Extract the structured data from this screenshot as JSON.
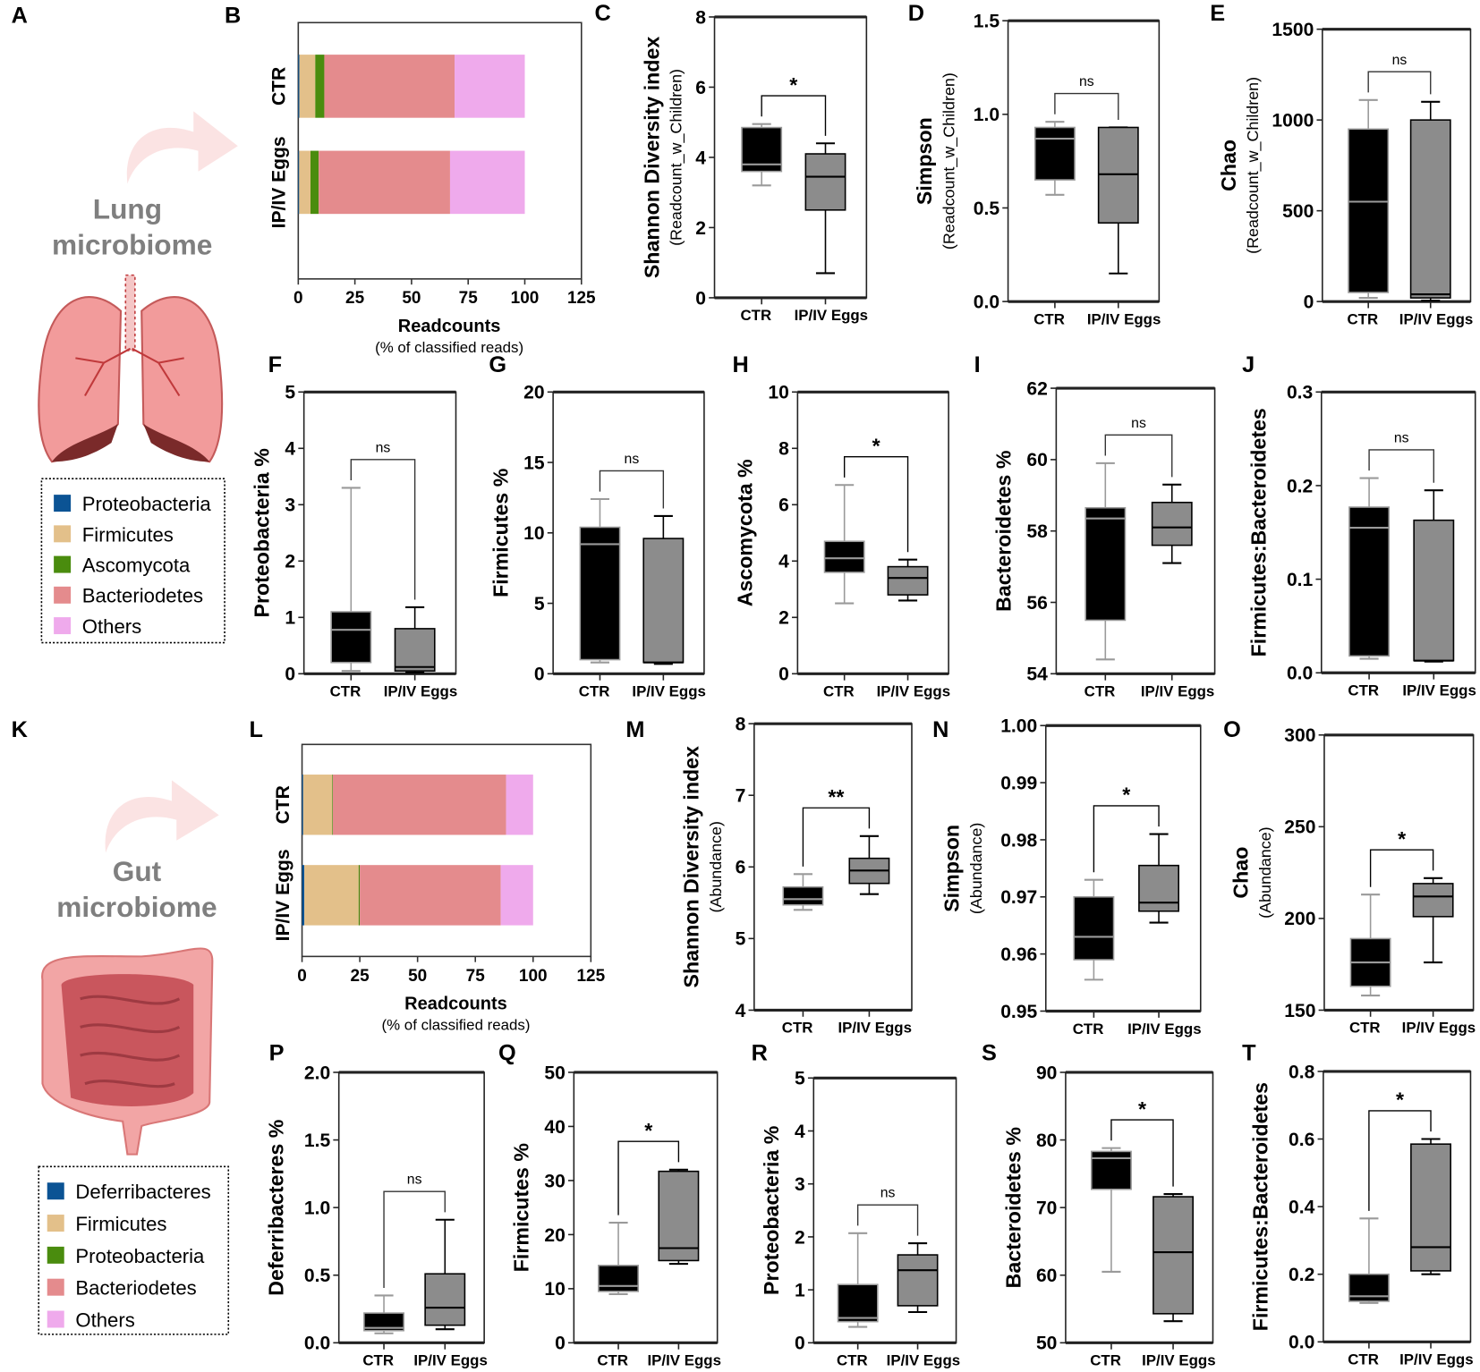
{
  "colors": {
    "ctr_box": "#000000",
    "egg_box": "#8c8c8c",
    "Proteobacteria": "#0b5394",
    "Deferribacteres": "#0b5394",
    "Firmicutes": "#e3c08a",
    "Ascomycota": "#4a8c0e",
    "Proteobacteria_gut": "#4a8c0e",
    "Bacteriodetes": "#e48b8d",
    "Others": "#efaaec"
  },
  "illustrations": {
    "lung": {
      "letter": "A",
      "title_line1": "Lung",
      "title_line2": "microbiome",
      "legend": [
        "Proteobacteria",
        "Firmicutes",
        "Ascomycota",
        "Bacteriodetes",
        "Others"
      ]
    },
    "gut": {
      "letter": "K",
      "title_line1": "Gut",
      "title_line2": "microbiome",
      "legend": [
        "Deferribacteres",
        "Firmicutes",
        "Proteobacteria",
        "Bacteriodetes",
        "Others"
      ]
    }
  },
  "chart_data": [
    {
      "id": "B",
      "type": "bar",
      "orientation": "horizontal",
      "stacked": true,
      "categories": [
        "CTR",
        "IP/IV Eggs"
      ],
      "series": [
        {
          "name": "Proteobacteria",
          "color_key": "Proteobacteria",
          "values": [
            0.5,
            0.4
          ]
        },
        {
          "name": "Firmicutes",
          "color_key": "Firmicutes",
          "values": [
            7,
            5
          ]
        },
        {
          "name": "Ascomycota",
          "color_key": "Ascomycota",
          "values": [
            4,
            3.6
          ]
        },
        {
          "name": "Bacteriodetes",
          "color_key": "Bacteriodetes",
          "values": [
            57.5,
            58
          ]
        },
        {
          "name": "Others",
          "color_key": "Others",
          "values": [
            31,
            33
          ]
        }
      ],
      "xlabel": "Readcounts",
      "xlabel_sub": "(% of classified reads)",
      "xlim": [
        0,
        125
      ],
      "xticks": [
        "0",
        "25",
        "50",
        "75",
        "100",
        "125"
      ]
    },
    {
      "id": "C",
      "type": "box",
      "ylabel": "Shannon Diversity index",
      "ylabel_sub": "(Readcount_w_Children)",
      "ylim": [
        0,
        8
      ],
      "yticks": [
        "0",
        "2",
        "4",
        "6",
        "8"
      ],
      "groups": [
        "CTR",
        "IP/IV Eggs"
      ],
      "boxes": [
        [
          3.2,
          3.6,
          3.8,
          4.85,
          4.95
        ],
        [
          0.7,
          2.5,
          3.45,
          4.1,
          4.4
        ]
      ],
      "significance": "*"
    },
    {
      "id": "D",
      "type": "box",
      "ylabel": "Simpson",
      "ylabel_sub": "(Readcount_w_Children)",
      "ylim": [
        0,
        1.5
      ],
      "yticks": [
        "0.0",
        "0.5",
        "1.0",
        "1.5"
      ],
      "groups": [
        "CTR",
        "IP/IV Eggs"
      ],
      "boxes": [
        [
          0.57,
          0.65,
          0.87,
          0.93,
          0.96
        ],
        [
          0.15,
          0.42,
          0.68,
          0.93,
          0.93
        ]
      ],
      "significance": "ns"
    },
    {
      "id": "E",
      "type": "box",
      "ylabel": "Chao",
      "ylabel_sub": "(Readcount_w_Children)",
      "ylim": [
        0,
        1500
      ],
      "yticks": [
        "0",
        "500",
        "1000",
        "1500"
      ],
      "groups": [
        "CTR",
        "IP/IV Eggs"
      ],
      "boxes": [
        [
          20,
          50,
          550,
          950,
          1110
        ],
        [
          5,
          20,
          40,
          1000,
          1100
        ]
      ],
      "significance": "ns"
    },
    {
      "id": "F",
      "type": "box",
      "ylabel": "Proteobacteria %",
      "ylim": [
        0,
        5
      ],
      "yticks": [
        "0",
        "1",
        "2",
        "3",
        "4",
        "5"
      ],
      "groups": [
        "CTR",
        "IP/IV Eggs"
      ],
      "boxes": [
        [
          0.05,
          0.2,
          0.78,
          1.1,
          3.3
        ],
        [
          0.02,
          0.05,
          0.12,
          0.8,
          1.18
        ]
      ],
      "significance": "ns"
    },
    {
      "id": "G",
      "type": "box",
      "ylabel": "Firmicutes %",
      "ylim": [
        0,
        20
      ],
      "yticks": [
        "0",
        "5",
        "10",
        "15",
        "20"
      ],
      "groups": [
        "CTR",
        "IP/IV Eggs"
      ],
      "boxes": [
        [
          0.8,
          1.0,
          9.2,
          10.4,
          12.4
        ],
        [
          0.7,
          0.8,
          0.8,
          9.6,
          11.2
        ]
      ],
      "significance": "ns"
    },
    {
      "id": "H",
      "type": "box",
      "ylabel": "Ascomycota %",
      "ylim": [
        0,
        10
      ],
      "yticks": [
        "0",
        "2",
        "4",
        "6",
        "8",
        "10"
      ],
      "groups": [
        "CTR",
        "IP/IV Eggs"
      ],
      "boxes": [
        [
          2.5,
          3.6,
          4.1,
          4.7,
          6.7
        ],
        [
          2.6,
          2.8,
          3.4,
          3.8,
          4.05
        ]
      ],
      "significance": "*"
    },
    {
      "id": "I",
      "type": "box",
      "ylabel": "Bacteroidetes %",
      "ylim": [
        54,
        62
      ],
      "yticks": [
        "54",
        "56",
        "58",
        "60",
        "62"
      ],
      "groups": [
        "CTR",
        "IP/IV Eggs"
      ],
      "boxes": [
        [
          54.4,
          55.5,
          58.35,
          58.65,
          59.9
        ],
        [
          57.1,
          57.6,
          58.1,
          58.8,
          59.3
        ]
      ],
      "significance": "ns"
    },
    {
      "id": "J",
      "type": "box",
      "ylabel": "Firmicutes:Bacteroidetes",
      "ylim": [
        0,
        0.3
      ],
      "yticks": [
        "0.0",
        "0.1",
        "0.2",
        "0.3"
      ],
      "groups": [
        "CTR",
        "IP/IV Eggs"
      ],
      "boxes": [
        [
          0.015,
          0.018,
          0.155,
          0.177,
          0.208
        ],
        [
          0.012,
          0.013,
          0.013,
          0.163,
          0.195
        ]
      ],
      "significance": "ns"
    },
    {
      "id": "L",
      "type": "bar",
      "orientation": "horizontal",
      "stacked": true,
      "categories": [
        "CTR",
        "IP/IV Eggs"
      ],
      "series": [
        {
          "name": "Deferribacteres",
          "color_key": "Deferribacteres",
          "values": [
            0.5,
            1
          ]
        },
        {
          "name": "Firmicutes",
          "color_key": "Firmicutes",
          "values": [
            12.5,
            23.5
          ]
        },
        {
          "name": "Proteobacteria",
          "color_key": "Proteobacteria_gut",
          "values": [
            0.3,
            0.5
          ]
        },
        {
          "name": "Bacteriodetes",
          "color_key": "Bacteriodetes",
          "values": [
            75,
            61
          ]
        },
        {
          "name": "Others",
          "color_key": "Others",
          "values": [
            11.7,
            14
          ]
        }
      ],
      "xlabel": "Readcounts",
      "xlabel_sub": "(% of classified reads)",
      "xlim": [
        0,
        125
      ],
      "xticks": [
        "0",
        "25",
        "50",
        "75",
        "100",
        "125"
      ]
    },
    {
      "id": "M",
      "type": "box",
      "ylabel": "Shannon Diversity index",
      "ylabel_sub": "(Abundance)",
      "ylim": [
        4,
        8
      ],
      "yticks": [
        "4",
        "5",
        "6",
        "7",
        "8"
      ],
      "groups": [
        "CTR",
        "IP/IV Eggs"
      ],
      "boxes": [
        [
          5.4,
          5.47,
          5.55,
          5.72,
          5.9
        ],
        [
          5.62,
          5.77,
          5.95,
          6.12,
          6.43
        ]
      ],
      "significance": "**"
    },
    {
      "id": "N",
      "type": "box",
      "ylabel": "Simpson",
      "ylabel_sub": "(Abundance)",
      "ylim": [
        0.95,
        1.0
      ],
      "yticks": [
        "0.95",
        "0.96",
        "0.97",
        "0.98",
        "0.99",
        "1.00"
      ],
      "groups": [
        "CTR",
        "IP/IV Eggs"
      ],
      "boxes": [
        [
          0.9555,
          0.959,
          0.963,
          0.97,
          0.973
        ],
        [
          0.9655,
          0.9675,
          0.969,
          0.9755,
          0.981
        ]
      ],
      "significance": "*"
    },
    {
      "id": "O",
      "type": "box",
      "ylabel": "Chao",
      "ylabel_sub": "(Abundance)",
      "ylim": [
        150,
        300
      ],
      "yticks": [
        "150",
        "200",
        "250",
        "300"
      ],
      "groups": [
        "CTR",
        "IP/IV Eggs"
      ],
      "boxes": [
        [
          158,
          163,
          176,
          189,
          213
        ],
        [
          176,
          201,
          212,
          219,
          222
        ]
      ],
      "significance": "*"
    },
    {
      "id": "P",
      "type": "box",
      "ylabel": "Deferribacteres  %",
      "ylim": [
        0,
        2
      ],
      "yticks": [
        "0.0",
        "0.5",
        "1.0",
        "1.5",
        "2.0"
      ],
      "groups": [
        "CTR",
        "IP/IV Eggs"
      ],
      "boxes": [
        [
          0.07,
          0.09,
          0.11,
          0.22,
          0.35
        ],
        [
          0.1,
          0.13,
          0.26,
          0.51,
          0.91
        ]
      ],
      "significance": "ns"
    },
    {
      "id": "Q",
      "type": "box",
      "ylabel": "Firmicutes %",
      "ylim": [
        0,
        50
      ],
      "yticks": [
        "0",
        "10",
        "20",
        "30",
        "40",
        "50"
      ],
      "groups": [
        "CTR",
        "IP/IV Eggs"
      ],
      "boxes": [
        [
          9,
          9.5,
          10.5,
          14.3,
          22.2
        ],
        [
          14.6,
          15.2,
          17.5,
          31.7,
          32
        ]
      ],
      "significance": "*"
    },
    {
      "id": "R",
      "type": "box",
      "ylabel": "Proteobacteria %",
      "ylim": [
        0,
        5
      ],
      "yticks": [
        "0",
        "1",
        "2",
        "3",
        "4",
        "5"
      ],
      "groups": [
        "CTR",
        "IP/IV Eggs"
      ],
      "boxes": [
        [
          0.3,
          0.4,
          0.47,
          1.1,
          2.07
        ],
        [
          0.58,
          0.7,
          1.37,
          1.66,
          1.88
        ]
      ],
      "significance": "ns"
    },
    {
      "id": "S",
      "type": "box",
      "ylabel": "Bacteroidetes %",
      "ylim": [
        50,
        90
      ],
      "yticks": [
        "50",
        "60",
        "70",
        "80",
        "90"
      ],
      "groups": [
        "CTR",
        "IP/IV Eggs"
      ],
      "boxes": [
        [
          60.5,
          72.7,
          77.3,
          78.3,
          78.8
        ],
        [
          53.2,
          54.3,
          63.4,
          71.6,
          72
        ]
      ],
      "significance": "*"
    },
    {
      "id": "T",
      "type": "box",
      "ylabel": "Firmicutes:Bacteroidetes",
      "ylim": [
        0,
        0.8
      ],
      "yticks": [
        "0.0",
        "0.2",
        "0.4",
        "0.6",
        "0.8"
      ],
      "groups": [
        "CTR",
        "IP/IV Eggs"
      ],
      "boxes": [
        [
          0.115,
          0.12,
          0.135,
          0.2,
          0.365
        ],
        [
          0.2,
          0.21,
          0.28,
          0.585,
          0.6
        ]
      ],
      "significance": "*"
    }
  ]
}
